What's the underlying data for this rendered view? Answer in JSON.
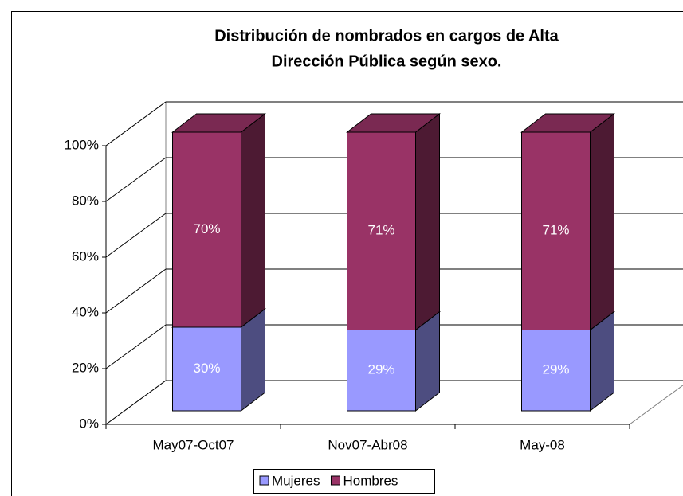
{
  "chart_data": {
    "type": "bar3d_stacked",
    "title": [
      "Distribución de nombrados en cargos de Alta",
      "Dirección Pública según sexo."
    ],
    "categories": [
      "May07-Oct07",
      "Nov07-Abr08",
      "May-08"
    ],
    "series": [
      {
        "name": "Mujeres",
        "color": "#9999ff",
        "values": [
          30,
          29,
          29
        ],
        "value_labels": [
          "30%",
          "29%",
          "29%"
        ]
      },
      {
        "name": "Hombres",
        "color": "#993366",
        "values": [
          70,
          71,
          71
        ],
        "value_labels": [
          "70%",
          "71%",
          "71%"
        ]
      }
    ],
    "ylim": [
      0,
      100
    ],
    "yticks": [
      {
        "value": 0,
        "label": "0%"
      },
      {
        "value": 20,
        "label": "20%"
      },
      {
        "value": 40,
        "label": "40%"
      },
      {
        "value": 60,
        "label": "60%"
      },
      {
        "value": 80,
        "label": "80%"
      },
      {
        "value": 100,
        "label": "100%"
      }
    ],
    "grid": true,
    "legend": "bottom"
  }
}
